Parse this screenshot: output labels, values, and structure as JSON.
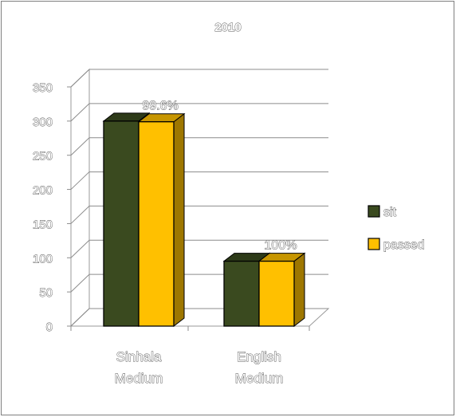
{
  "chart_data": {
    "type": "bar",
    "title": "2010",
    "categories": [
      "Sinhala Medium",
      "English Medium"
    ],
    "category_lines": [
      [
        "Sinhala",
        "Medium"
      ],
      [
        "English",
        "Medium"
      ]
    ],
    "series": [
      {
        "name": "sit",
        "values": [
          300,
          95
        ],
        "color": "#3a4a1f"
      },
      {
        "name": "passed",
        "values": [
          299,
          95
        ],
        "color": "#ffc000"
      }
    ],
    "data_labels": [
      "99.6%",
      "100%"
    ],
    "yticks": [
      "0",
      "50",
      "100",
      "150",
      "200",
      "250",
      "300",
      "350"
    ],
    "ylim": [
      0,
      350
    ],
    "grid": true,
    "legend": "right",
    "three_d": true
  }
}
